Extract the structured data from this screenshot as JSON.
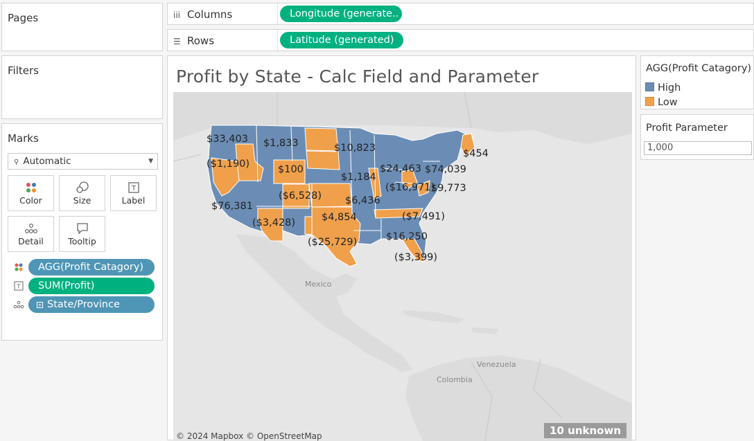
{
  "pages": {
    "title": "Pages"
  },
  "filters": {
    "title": "Filters"
  },
  "shelves": {
    "columns": {
      "label": "Columns",
      "pill": "Longitude (generate.."
    },
    "rows": {
      "label": "Rows",
      "pill": "Latitude (generated)"
    }
  },
  "marks": {
    "title": "Marks",
    "type": "Automatic",
    "buttons": {
      "color": "Color",
      "size": "Size",
      "label": "Label",
      "detail": "Detail",
      "tooltip": "Tooltip"
    },
    "fields": {
      "color": "AGG(Profit Catagory)",
      "label": "SUM(Profit)",
      "detail": "State/Province"
    }
  },
  "view": {
    "title": "Profit by State - Calc Field and Parameter",
    "attribution": "© 2024 Mapbox © OpenStreetMap",
    "unknown": "10 unknown",
    "places": {
      "mexico": "Mexico",
      "venezuela": "Venezuela",
      "colombia": "Colombia"
    },
    "labels": [
      {
        "text": "$33,403"
      },
      {
        "text": "$1,833"
      },
      {
        "text": "$10,823"
      },
      {
        "text": "$454"
      },
      {
        "text": "($1,190)"
      },
      {
        "text": "$100"
      },
      {
        "text": "$24,463"
      },
      {
        "text": "$74,039"
      },
      {
        "text": "$1,184"
      },
      {
        "text": "($16,971)"
      },
      {
        "text": "$9,773"
      },
      {
        "text": "($6,528)"
      },
      {
        "text": "$6,436"
      },
      {
        "text": "$76,381"
      },
      {
        "text": "$4,854"
      },
      {
        "text": "($7,491)"
      },
      {
        "text": "($3,428)"
      },
      {
        "text": "($25,729)"
      },
      {
        "text": "$16,250"
      },
      {
        "text": "($3,399)"
      }
    ]
  },
  "legend": {
    "title": "AGG(Profit Catagory)",
    "items": [
      {
        "label": "High",
        "color": "#6b8db5"
      },
      {
        "label": "Low",
        "color": "#f0a04b"
      }
    ]
  },
  "parameter": {
    "title": "Profit Parameter",
    "value": "1,000"
  }
}
